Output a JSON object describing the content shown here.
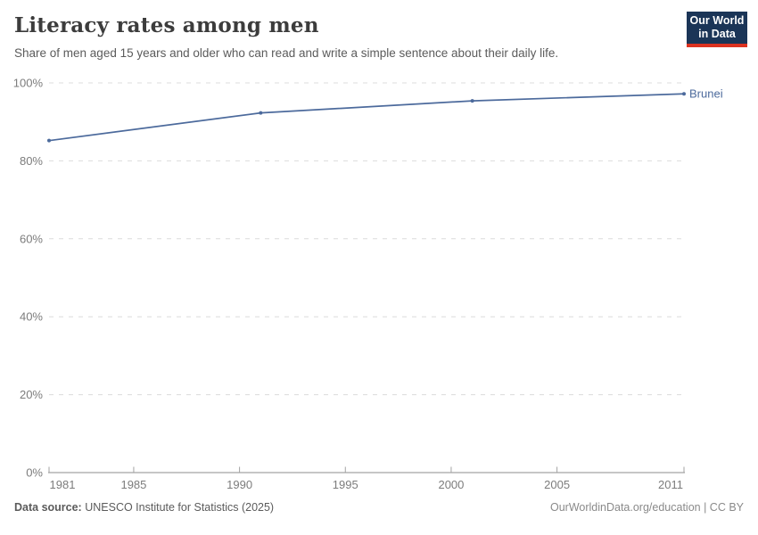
{
  "header": {
    "title": "Literacy rates among men",
    "subtitle": "Share of men aged 15 years and older who can read and write a simple sentence about their daily life."
  },
  "logo": {
    "line1": "Our World",
    "line2": "in Data"
  },
  "chart_data": {
    "type": "line",
    "title": "Literacy rates among men",
    "xlabel": "",
    "ylabel": "",
    "xlim": [
      1981,
      2011
    ],
    "ylim": [
      0,
      100
    ],
    "x_ticks": [
      1981,
      1985,
      1990,
      1995,
      2000,
      2005,
      2011
    ],
    "y_ticks": [
      0,
      20,
      40,
      60,
      80,
      100
    ],
    "y_tick_suffix": "%",
    "grid": "horizontal-dashed",
    "legend_position": "end-of-line-label",
    "series": [
      {
        "name": "Brunei",
        "color": "#4c6a9c",
        "x": [
          1981,
          1991,
          2001,
          2011
        ],
        "values": [
          85.2,
          92.3,
          95.4,
          97.2
        ]
      }
    ]
  },
  "footer": {
    "data_source_label": "Data source:",
    "data_source_value": "UNESCO Institute for Statistics (2025)",
    "attribution": "OurWorldinData.org/education | CC BY"
  },
  "colors": {
    "line": "#4c6a9c",
    "grid": "#dcdcdc",
    "axis": "#a3a3a3",
    "tick_label": "#7c7c7c",
    "logo_bg": "#1b3557",
    "logo_accent": "#dc3220"
  }
}
